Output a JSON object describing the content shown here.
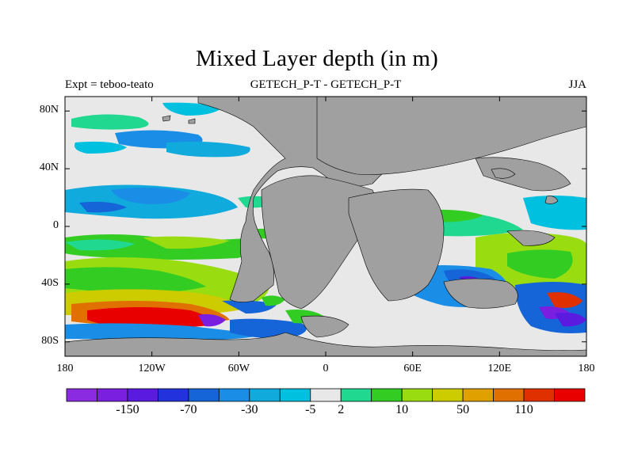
{
  "title": "Mixed Layer depth (in m)",
  "subtitle_left": "Expt = teboo-teato",
  "subtitle_center": "GETECH_P-T - GETECH_P-T",
  "subtitle_right": "JJA",
  "lat_ticks": [
    {
      "label": "80N",
      "lat": 80
    },
    {
      "label": "40N",
      "lat": 40
    },
    {
      "label": "0",
      "lat": 0
    },
    {
      "label": "40S",
      "lat": -40
    },
    {
      "label": "80S",
      "lat": -80
    }
  ],
  "lon_ticks": [
    {
      "label": "180",
      "lon": -180
    },
    {
      "label": "120W",
      "lon": -120
    },
    {
      "label": "60W",
      "lon": -60
    },
    {
      "label": "0",
      "lon": 0
    },
    {
      "label": "60E",
      "lon": 60
    },
    {
      "label": "120E",
      "lon": 120
    },
    {
      "label": "180",
      "lon": 180
    }
  ],
  "colorbar": {
    "colors": [
      "#8a2be2",
      "#7a1ee0",
      "#5a1ae0",
      "#2233dd",
      "#1565d8",
      "#1a8ee6",
      "#10aadd",
      "#00c0e0",
      "#e8e8e8",
      "#20d890",
      "#33cc22",
      "#99dd11",
      "#cccc00",
      "#e0a000",
      "#e07000",
      "#e03000",
      "#e80000"
    ],
    "labels": [
      {
        "text": "-150",
        "after_index": 1
      },
      {
        "text": "-70",
        "after_index": 3
      },
      {
        "text": "-30",
        "after_index": 5
      },
      {
        "text": "-5",
        "after_index": 7
      },
      {
        "text": "2",
        "after_index": 8
      },
      {
        "text": "10",
        "after_index": 10
      },
      {
        "text": "50",
        "after_index": 12
      },
      {
        "text": "110",
        "after_index": 14
      }
    ]
  },
  "colors": {
    "land": "#a0a0a0",
    "ocean_neutral": "#e8e8e8",
    "coast": "#000000"
  }
}
